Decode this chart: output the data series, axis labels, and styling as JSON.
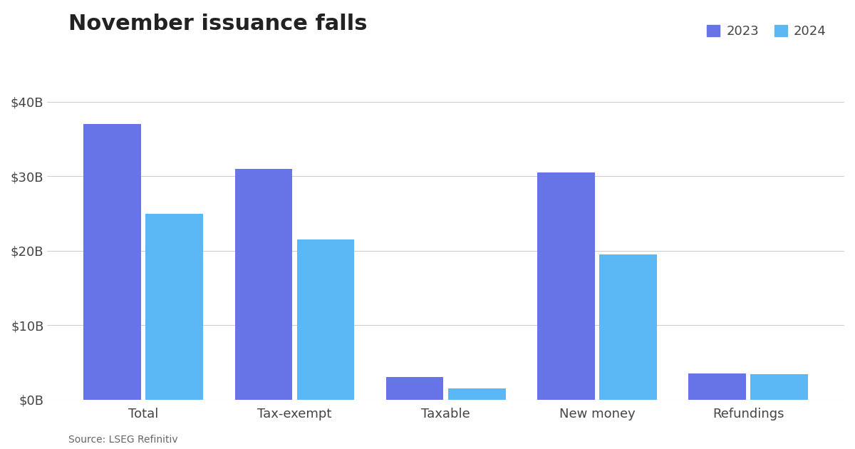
{
  "categories": [
    "Total",
    "Tax-exempt",
    "Taxable",
    "New money",
    "Refundings"
  ],
  "values_2023": [
    37.0,
    31.0,
    3.0,
    30.5,
    3.5
  ],
  "values_2024": [
    25.0,
    21.5,
    1.5,
    19.5,
    3.4
  ],
  "color_2023": "#6674E8",
  "color_2024": "#5BB8F5",
  "title": "November issuance falls",
  "ylim": [
    0,
    42
  ],
  "yticks": [
    0,
    10,
    20,
    30,
    40
  ],
  "ytick_labels": [
    "$0B",
    "$10B",
    "$20B",
    "$30B",
    "$40B"
  ],
  "legend_labels": [
    "2023",
    "2024"
  ],
  "source": "Source: LSEG Refinitiv",
  "background_color": "#ffffff",
  "grid_color": "#cccccc",
  "bar_width": 0.38,
  "bar_gap": 0.03
}
